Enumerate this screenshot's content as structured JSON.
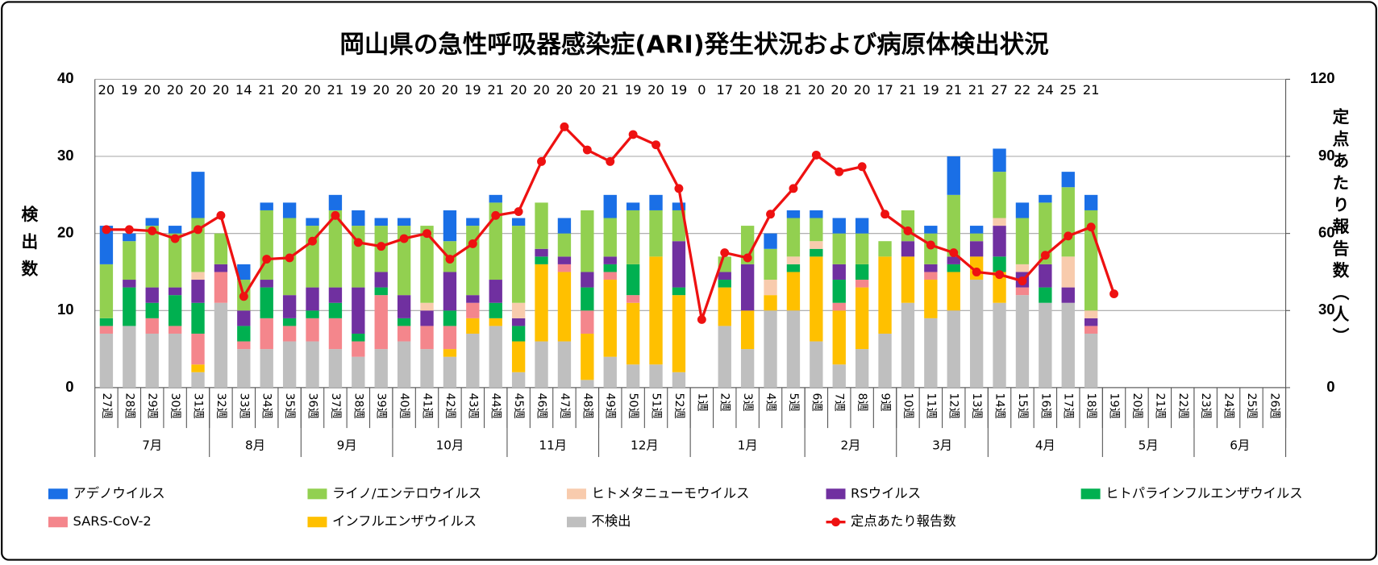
{
  "chart_data": {
    "type": "bar",
    "stacked": true,
    "title": "岡山県の急性呼吸器感染症(ARI)発生状況および病原体検出状況",
    "ylabel": "検出数",
    "y2label": "定点あたり報告数（人）",
    "ylim": [
      0,
      40
    ],
    "yticks": [
      0,
      10,
      20,
      30,
      40
    ],
    "y2lim": [
      0,
      120
    ],
    "y2ticks": [
      0,
      30,
      60,
      90,
      120
    ],
    "grid": true,
    "categories": [
      "27週",
      "28週",
      "29週",
      "30週",
      "31週",
      "32週",
      "33週",
      "34週",
      "35週",
      "36週",
      "37週",
      "38週",
      "39週",
      "40週",
      "41週",
      "42週",
      "43週",
      "44週",
      "45週",
      "46週",
      "47週",
      "48週",
      "49週",
      "50週",
      "51週",
      "52週",
      "1週",
      "2週",
      "3週",
      "4週",
      "5週",
      "6週",
      "7週",
      "8週",
      "9週",
      "10週",
      "11週",
      "12週",
      "13週",
      "14週",
      "15週",
      "16週",
      "17週",
      "18週",
      "19週",
      "20週",
      "21週",
      "22週",
      "23週",
      "24週",
      "25週",
      "26週"
    ],
    "groups": [
      {
        "label": "7月",
        "n": 5
      },
      {
        "label": "8月",
        "n": 4
      },
      {
        "label": "9月",
        "n": 4
      },
      {
        "label": "10月",
        "n": 5
      },
      {
        "label": "11月",
        "n": 4
      },
      {
        "label": "12月",
        "n": 4
      },
      {
        "label": "1月",
        "n": 5
      },
      {
        "label": "2月",
        "n": 4
      },
      {
        "label": "3月",
        "n": 4
      },
      {
        "label": "4月",
        "n": 5
      },
      {
        "label": "5月",
        "n": 4
      },
      {
        "label": "6月",
        "n": 4
      }
    ],
    "site_counts": [
      20,
      19,
      20,
      20,
      20,
      20,
      14,
      21,
      20,
      20,
      21,
      19,
      20,
      20,
      20,
      20,
      19,
      21,
      20,
      20,
      20,
      20,
      21,
      19,
      20,
      19,
      0,
      17,
      20,
      18,
      21,
      20,
      20,
      20,
      17,
      21,
      19,
      21,
      21,
      27,
      22,
      24,
      25,
      21,
      null,
      null,
      null,
      null,
      null,
      null,
      null,
      null
    ],
    "series": [
      {
        "name": "アデノウイルス",
        "color": "#1a6fe6",
        "values": [
          5,
          1,
          1,
          1,
          6,
          0,
          2,
          1,
          2,
          1,
          2,
          2,
          1,
          1,
          0,
          4,
          1,
          1,
          1,
          0,
          2,
          0,
          3,
          1,
          2,
          1,
          0,
          0,
          0,
          2,
          1,
          1,
          2,
          2,
          0,
          0,
          1,
          5,
          1,
          3,
          2,
          1,
          2,
          2,
          null,
          null,
          null,
          null,
          null,
          null,
          null,
          null
        ]
      },
      {
        "name": "ライノ/エンテロウイルス",
        "color": "#92d050",
        "values": [
          7,
          5,
          8,
          7,
          7,
          4,
          4,
          9,
          10,
          8,
          10,
          8,
          6,
          9,
          10,
          4,
          9,
          10,
          10,
          6,
          3,
          8,
          5,
          7,
          6,
          4,
          0,
          2,
          5,
          4,
          5,
          3,
          4,
          4,
          2,
          4,
          4,
          8,
          1,
          6,
          6,
          8,
          9,
          13,
          null,
          null,
          null,
          null,
          null,
          null,
          null,
          null
        ]
      },
      {
        "name": "ヒトメタニューモウイルス",
        "color": "#f8cbad",
        "values": [
          0,
          0,
          0,
          0,
          1,
          0,
          0,
          0,
          0,
          0,
          0,
          0,
          0,
          0,
          1,
          0,
          0,
          0,
          2,
          0,
          0,
          0,
          0,
          0,
          0,
          0,
          0,
          0,
          0,
          2,
          1,
          1,
          0,
          0,
          0,
          0,
          0,
          0,
          0,
          1,
          1,
          0,
          4,
          1,
          null,
          null,
          null,
          null,
          null,
          null,
          null,
          null
        ]
      },
      {
        "name": "RSウイルス",
        "color": "#7030a0",
        "values": [
          0,
          1,
          2,
          1,
          3,
          1,
          2,
          1,
          3,
          3,
          2,
          6,
          2,
          3,
          2,
          5,
          1,
          3,
          1,
          1,
          1,
          2,
          1,
          0,
          0,
          6,
          0,
          1,
          6,
          0,
          0,
          0,
          2,
          0,
          0,
          2,
          1,
          1,
          2,
          4,
          2,
          3,
          2,
          1,
          null,
          null,
          null,
          null,
          null,
          null,
          null,
          null
        ]
      },
      {
        "name": "ヒトパラインフルエンザウイルス",
        "color": "#00b050",
        "values": [
          1,
          5,
          2,
          4,
          4,
          0,
          2,
          4,
          1,
          1,
          2,
          1,
          1,
          1,
          0,
          2,
          0,
          2,
          2,
          1,
          0,
          3,
          1,
          4,
          0,
          1,
          0,
          1,
          0,
          0,
          1,
          1,
          3,
          2,
          0,
          0,
          0,
          1,
          0,
          2,
          0,
          2,
          0,
          0,
          null,
          null,
          null,
          null,
          null,
          null,
          null,
          null
        ]
      },
      {
        "name": "SARS-CoV-2",
        "color": "#f4868c",
        "values": [
          1,
          0,
          2,
          1,
          4,
          4,
          1,
          4,
          2,
          3,
          4,
          2,
          7,
          2,
          3,
          3,
          2,
          0,
          0,
          0,
          1,
          3,
          1,
          1,
          0,
          0,
          0,
          0,
          0,
          0,
          0,
          0,
          1,
          1,
          0,
          0,
          1,
          0,
          0,
          0,
          1,
          0,
          0,
          1,
          null,
          null,
          null,
          null,
          null,
          null,
          null,
          null
        ]
      },
      {
        "name": "インフルエンザウイルス",
        "color": "#ffc000",
        "values": [
          0,
          0,
          0,
          0,
          1,
          0,
          0,
          0,
          0,
          0,
          0,
          0,
          0,
          0,
          0,
          1,
          2,
          1,
          4,
          10,
          9,
          6,
          10,
          8,
          14,
          10,
          0,
          5,
          5,
          2,
          5,
          11,
          7,
          8,
          10,
          6,
          5,
          5,
          3,
          4,
          0,
          0,
          0,
          0,
          null,
          null,
          null,
          null,
          null,
          null,
          null,
          null
        ]
      },
      {
        "name": "不検出",
        "color": "#bfbfbf",
        "values": [
          7,
          8,
          7,
          7,
          2,
          11,
          5,
          5,
          6,
          6,
          5,
          4,
          5,
          6,
          5,
          4,
          7,
          8,
          2,
          6,
          6,
          1,
          4,
          3,
          3,
          2,
          0,
          8,
          5,
          10,
          10,
          6,
          3,
          5,
          7,
          11,
          9,
          10,
          14,
          11,
          12,
          11,
          11,
          7,
          null,
          null,
          null,
          null,
          null,
          null,
          null,
          null
        ]
      },
      {
        "name": "定点あたり報告数",
        "type": "line",
        "axis": "y2",
        "color": "#ee1111",
        "values": [
          61.5,
          61.5,
          61,
          58,
          61.5,
          67,
          35.5,
          50,
          50.5,
          57,
          67,
          56.5,
          55,
          58,
          60,
          50,
          56,
          67,
          68.5,
          88,
          101.5,
          92.5,
          88,
          98.5,
          94.5,
          77.5,
          26.5,
          52.5,
          50.5,
          67.5,
          77.5,
          90.5,
          84,
          86,
          67.5,
          61,
          55.5,
          52.5,
          45,
          44,
          41.5,
          51.5,
          59,
          62.5,
          36.5,
          null,
          null,
          null,
          null,
          null,
          null,
          null
        ]
      }
    ]
  }
}
